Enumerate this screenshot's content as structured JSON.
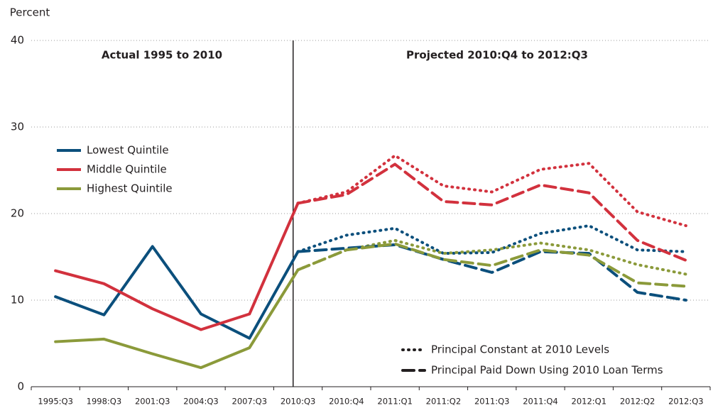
{
  "chart_data": {
    "type": "line",
    "y_label": "Percent",
    "annotations": [
      "Actual 1995 to 2010",
      "Projected 2010:Q4 to 2012:Q3"
    ],
    "categories": [
      "1995:Q3",
      "1998:Q3",
      "2001:Q3",
      "2004:Q3",
      "2007:Q3",
      "2010:Q3",
      "2010:Q4",
      "2011:Q1",
      "2011:Q2",
      "2011:Q3",
      "2011:Q4",
      "2012:Q1",
      "2012:Q2",
      "2012:Q3"
    ],
    "ylim": [
      0,
      40
    ],
    "yticks": [
      0,
      10,
      20,
      30,
      40
    ],
    "grid": true,
    "series": [
      {
        "name": "Lowest Quintile",
        "color": "#0b4f7c",
        "values": [
          10.4,
          8.3,
          16.2,
          8.4,
          5.6,
          15.6,
          null,
          null,
          null,
          null,
          null,
          null,
          null,
          null
        ]
      },
      {
        "name": "Middle Quintile",
        "color": "#d2313d",
        "values": [
          13.4,
          11.9,
          9.0,
          6.6,
          8.4,
          21.2,
          null,
          null,
          null,
          null,
          null,
          null,
          null,
          null
        ]
      },
      {
        "name": "Highest Quintile",
        "color": "#8b9a3a",
        "values": [
          5.2,
          5.5,
          3.8,
          2.2,
          4.5,
          13.5,
          null,
          null,
          null,
          null,
          null,
          null,
          null,
          null
        ]
      }
    ],
    "projections": [
      {
        "name": "Principal Constant at 2010 Levels",
        "style": "dotted",
        "series": [
          {
            "color": "#0b4f7c",
            "values": [
              null,
              null,
              null,
              null,
              null,
              15.6,
              17.5,
              18.3,
              15.4,
              15.5,
              17.7,
              18.6,
              15.8,
              15.6
            ]
          },
          {
            "color": "#d2313d",
            "values": [
              null,
              null,
              null,
              null,
              null,
              21.2,
              22.5,
              26.7,
              23.2,
              22.5,
              25.1,
              25.8,
              20.2,
              18.6
            ]
          },
          {
            "color": "#8b9a3a",
            "values": [
              null,
              null,
              null,
              null,
              null,
              13.5,
              15.8,
              16.9,
              15.4,
              15.8,
              16.6,
              15.8,
              14.1,
              13.0
            ]
          }
        ]
      },
      {
        "name": "Principal Paid Down Using 2010 Loan Terms",
        "style": "dashed",
        "series": [
          {
            "color": "#0b4f7c",
            "values": [
              null,
              null,
              null,
              null,
              null,
              15.6,
              16.0,
              16.4,
              14.7,
              13.2,
              15.6,
              15.4,
              10.9,
              10.0
            ]
          },
          {
            "color": "#d2313d",
            "values": [
              null,
              null,
              null,
              null,
              null,
              21.2,
              22.2,
              25.7,
              21.4,
              21.0,
              23.3,
              22.4,
              16.9,
              14.6
            ]
          },
          {
            "color": "#8b9a3a",
            "values": [
              null,
              null,
              null,
              null,
              null,
              13.5,
              15.8,
              16.5,
              14.7,
              14.0,
              15.8,
              15.2,
              12.0,
              11.6
            ]
          }
        ]
      }
    ]
  }
}
